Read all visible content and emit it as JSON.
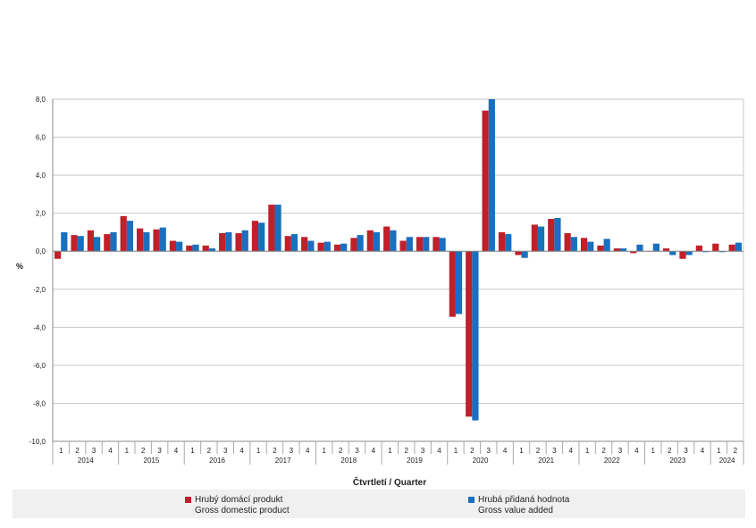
{
  "chart_data": {
    "type": "bar",
    "ylabel": "%",
    "xlabel": "Čtvrtletí / Quarter",
    "ylim": [
      -10,
      8
    ],
    "yticks": [
      "8,0",
      "6,0",
      "4,0",
      "2,0",
      "0,0",
      "-2,0",
      "-4,0",
      "-6,0",
      "-8,0",
      "-10,0"
    ],
    "ytick_values": [
      8,
      6,
      4,
      2,
      0,
      -2,
      -4,
      -6,
      -8,
      -10
    ],
    "grid": true,
    "legend_position": "bottom",
    "quarters": [
      "1",
      "2",
      "3",
      "4",
      "1",
      "2",
      "3",
      "4",
      "1",
      "2",
      "3",
      "4",
      "1",
      "2",
      "3",
      "4",
      "1",
      "2",
      "3",
      "4",
      "1",
      "2",
      "3",
      "4",
      "1",
      "2",
      "3",
      "4",
      "1",
      "2",
      "3",
      "4",
      "1",
      "2",
      "3",
      "4",
      "1",
      "2",
      "3",
      "4",
      "1",
      "2"
    ],
    "years": [
      {
        "label": "2014",
        "count": 4
      },
      {
        "label": "2015",
        "count": 4
      },
      {
        "label": "2016",
        "count": 4
      },
      {
        "label": "2017",
        "count": 4
      },
      {
        "label": "2018",
        "count": 4
      },
      {
        "label": "2019",
        "count": 4
      },
      {
        "label": "2020",
        "count": 4
      },
      {
        "label": "2021",
        "count": 4
      },
      {
        "label": "2022",
        "count": 4
      },
      {
        "label": "2023",
        "count": 4
      },
      {
        "label": "2024",
        "count": 2
      }
    ],
    "series": [
      {
        "name_cz": "Hrubý domácí produkt",
        "name_en": "Gross domestic product",
        "color": "#c0202a",
        "values": [
          -0.4,
          0.85,
          1.1,
          0.9,
          1.85,
          1.2,
          1.15,
          0.55,
          0.3,
          0.3,
          0.95,
          0.95,
          1.6,
          2.45,
          0.8,
          0.75,
          0.45,
          0.35,
          0.7,
          1.1,
          1.3,
          0.55,
          0.75,
          0.75,
          -3.45,
          -8.7,
          7.4,
          1.0,
          -0.2,
          1.4,
          1.7,
          0.95,
          0.7,
          0.3,
          0.15,
          -0.1,
          0.0,
          0.15,
          -0.4,
          0.3,
          0.4,
          0.35
        ]
      },
      {
        "name_cz": "Hrubá přidaná hodnota",
        "name_en": "Gross value added",
        "color": "#1a6fbf",
        "values": [
          1.0,
          0.8,
          0.75,
          1.0,
          1.6,
          1.0,
          1.25,
          0.5,
          0.35,
          0.15,
          1.0,
          1.1,
          1.5,
          2.45,
          0.9,
          0.55,
          0.5,
          0.4,
          0.85,
          1.0,
          1.1,
          0.75,
          0.75,
          0.7,
          -3.3,
          -8.9,
          8.0,
          0.9,
          -0.35,
          1.3,
          1.75,
          0.75,
          0.5,
          0.65,
          0.15,
          0.35,
          0.4,
          -0.2,
          -0.2,
          -0.05,
          -0.05,
          0.45
        ]
      }
    ]
  }
}
